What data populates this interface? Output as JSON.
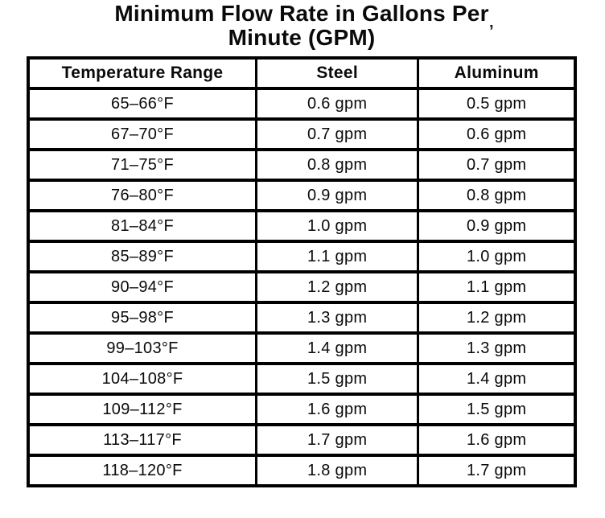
{
  "title": {
    "line1": "Minimum Flow Rate in Gallons Per",
    "line2": "Minute (GPM)"
  },
  "artifact_mark": "’",
  "colors": {
    "ink": "#000000",
    "background": "#ffffff"
  },
  "table": {
    "headers": [
      "Temperature Range",
      "Steel",
      "Aluminum"
    ],
    "rows": [
      {
        "temp": "65–66°F",
        "steel": "0.6 gpm",
        "aluminum": "0.5 gpm"
      },
      {
        "temp": "67–70°F",
        "steel": "0.7 gpm",
        "aluminum": "0.6 gpm"
      },
      {
        "temp": "71–75°F",
        "steel": "0.8 gpm",
        "aluminum": "0.7 gpm"
      },
      {
        "temp": "76–80°F",
        "steel": "0.9 gpm",
        "aluminum": "0.8 gpm"
      },
      {
        "temp": "81–84°F",
        "steel": "1.0 gpm",
        "aluminum": "0.9 gpm"
      },
      {
        "temp": "85–89°F",
        "steel": "1.1 gpm",
        "aluminum": "1.0 gpm"
      },
      {
        "temp": "90–94°F",
        "steel": "1.2 gpm",
        "aluminum": "1.1 gpm"
      },
      {
        "temp": "95–98°F",
        "steel": "1.3 gpm",
        "aluminum": "1.2 gpm"
      },
      {
        "temp": "99–103°F",
        "steel": "1.4 gpm",
        "aluminum": "1.3 gpm"
      },
      {
        "temp": "104–108°F",
        "steel": "1.5 gpm",
        "aluminum": "1.4 gpm"
      },
      {
        "temp": "109–112°F",
        "steel": "1.6 gpm",
        "aluminum": "1.5 gpm"
      },
      {
        "temp": "113–117°F",
        "steel": "1.7 gpm",
        "aluminum": "1.6 gpm"
      },
      {
        "temp": "118–120°F",
        "steel": "1.8 gpm",
        "aluminum": "1.7 gpm"
      }
    ]
  }
}
